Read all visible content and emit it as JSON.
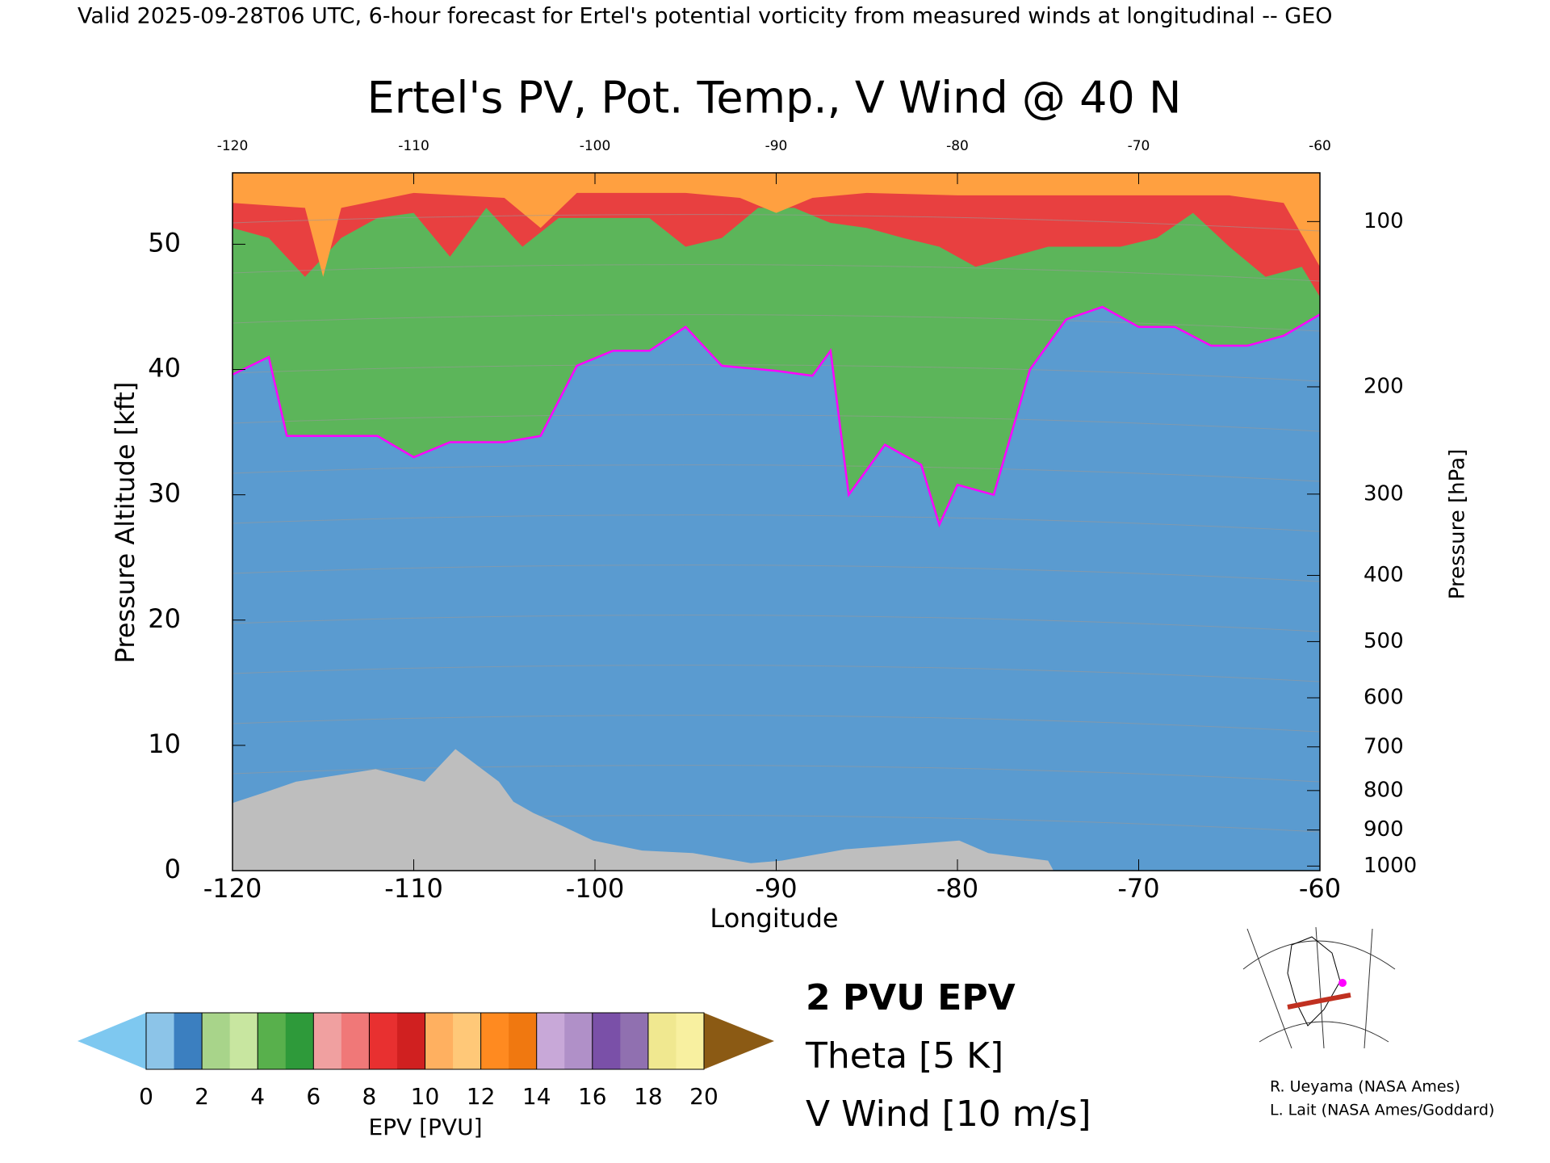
{
  "chart_data": {
    "type": "cross-section",
    "header": "Valid 2025-09-28T06 UTC, 6-hour forecast for Ertel's potential vorticity from measured winds at longitudinal -- GEO",
    "title": "Ertel's PV, Pot. Temp., V Wind @ 40 N",
    "xlabel": "Longitude",
    "ylabel": "Pressure Altitude [kft]",
    "y2label": "Pressure [hPa]",
    "xlim": [
      -120,
      -60
    ],
    "xticks": [
      -120,
      -110,
      -100,
      -90,
      -80,
      -70,
      -60
    ],
    "ylim": [
      0,
      55.7
    ],
    "yticks": [
      0,
      10,
      20,
      30,
      40,
      50
    ],
    "y2scale": "pressure-altitude",
    "y2lim": [
      1013.25,
      80
    ],
    "y2ticks": [
      100,
      200,
      300,
      400,
      500,
      600,
      700,
      800,
      900,
      1000
    ],
    "background": "#5a9bd0",
    "series": [
      {
        "color": "#ff00ff",
        "fill": "#5cb55a",
        "x": [
          -120,
          -118,
          -117,
          -115,
          -112,
          -110,
          -108,
          -105,
          -103,
          -101,
          -99,
          -97,
          -95,
          -93,
          -90,
          -88,
          -87,
          -86,
          -84,
          -82,
          -81,
          -80,
          -78,
          -76,
          -74,
          -72,
          -70,
          -68,
          -66,
          -64,
          -62,
          -60
        ],
        "values": [
          39.6,
          41,
          34.7,
          34.7,
          34.7,
          33,
          34.2,
          34.2,
          34.7,
          40.3,
          41.5,
          41.5,
          43.4,
          40.3,
          39.9,
          39.5,
          41.5,
          30,
          34,
          32.4,
          27.6,
          30.8,
          30,
          40,
          44,
          45,
          43.4,
          43.4,
          41.9,
          41.9,
          42.7,
          44.4
        ]
      },
      {
        "fill": "#e84040",
        "x": [
          -120,
          -118,
          -116,
          -114,
          -112,
          -110,
          -108,
          -106,
          -104,
          -102,
          -100,
          -97,
          -95,
          -93,
          -91,
          -89,
          -87,
          -85,
          -83,
          -81,
          -79,
          -77,
          -75,
          -73,
          -71,
          -69,
          -67,
          -65,
          -63,
          -61,
          -60
        ],
        "values": [
          51.3,
          50.5,
          47.4,
          50.5,
          52.1,
          52.5,
          49,
          52.9,
          49.8,
          52.1,
          52.1,
          52.1,
          49.8,
          50.5,
          52.9,
          52.9,
          51.7,
          51.3,
          50.5,
          49.8,
          48.2,
          49,
          49.8,
          49.8,
          49.8,
          50.5,
          52.5,
          49.8,
          47.4,
          48.2,
          45.8
        ]
      },
      {
        "fill": "#ffa040",
        "x": [
          -120,
          -116,
          -115,
          -114,
          -110,
          -105,
          -103,
          -101,
          -95,
          -92,
          -90,
          -88,
          -85,
          -80,
          -75,
          -70,
          -65,
          -62,
          -60
        ],
        "values": [
          53.3,
          52.9,
          47.4,
          52.9,
          54.1,
          53.7,
          51.3,
          54.1,
          54.1,
          53.7,
          52.5,
          53.7,
          54.1,
          53.9,
          53.9,
          53.9,
          53.9,
          53.3,
          48.2
        ]
      }
    ],
    "terrain": {
      "color": "#bebebe",
      "x": [
        -120,
        -118.1,
        -116.5,
        -112.1,
        -109.4,
        -107.7,
        -105.3,
        -104.5,
        -103.4,
        -101.7,
        -100.1,
        -97.4,
        -94.6,
        -91.4,
        -89.7,
        -86.2,
        -79.9,
        -78.3,
        -75,
        -74.7
      ],
      "values": [
        5.4,
        6.3,
        7.1,
        8.1,
        7.1,
        9.7,
        7.1,
        5.5,
        4.6,
        3.5,
        2.4,
        1.6,
        1.4,
        0.6,
        0.8,
        1.7,
        2.4,
        1.4,
        0.8,
        0
      ]
    },
    "legend": [
      {
        "label": "2 PVU EPV",
        "color": "#ff00ff"
      },
      {
        "label": "Theta [5 K]",
        "color": "#a8a8a8"
      },
      {
        "label": "V Wind [10 m/s]",
        "color": "#000000"
      }
    ],
    "colorbar": {
      "label": "EPV [PVU]",
      "lim": [
        0,
        20
      ],
      "ticks": [
        0,
        2,
        4,
        6,
        8,
        10,
        12,
        14,
        16,
        18,
        20
      ],
      "colors": [
        "#8cc4e8",
        "#3b7fc0",
        "#a8d48a",
        "#c8e6a0",
        "#58b04c",
        "#2e9a3a",
        "#f0a0a0",
        "#f07878",
        "#e83030",
        "#d02020",
        "#ffb060",
        "#ffc878",
        "#ff8a20",
        "#f07810",
        "#c8a8d8",
        "#b090c8",
        "#7a50a8",
        "#9070b0",
        "#f0e890",
        "#f8f0a0"
      ],
      "under": "#7ec8f0",
      "over": "#8b5a14"
    },
    "credits": [
      "R. Ueyama (NASA Ames)",
      "L. Lait (NASA Ames/Goddard)"
    ]
  }
}
